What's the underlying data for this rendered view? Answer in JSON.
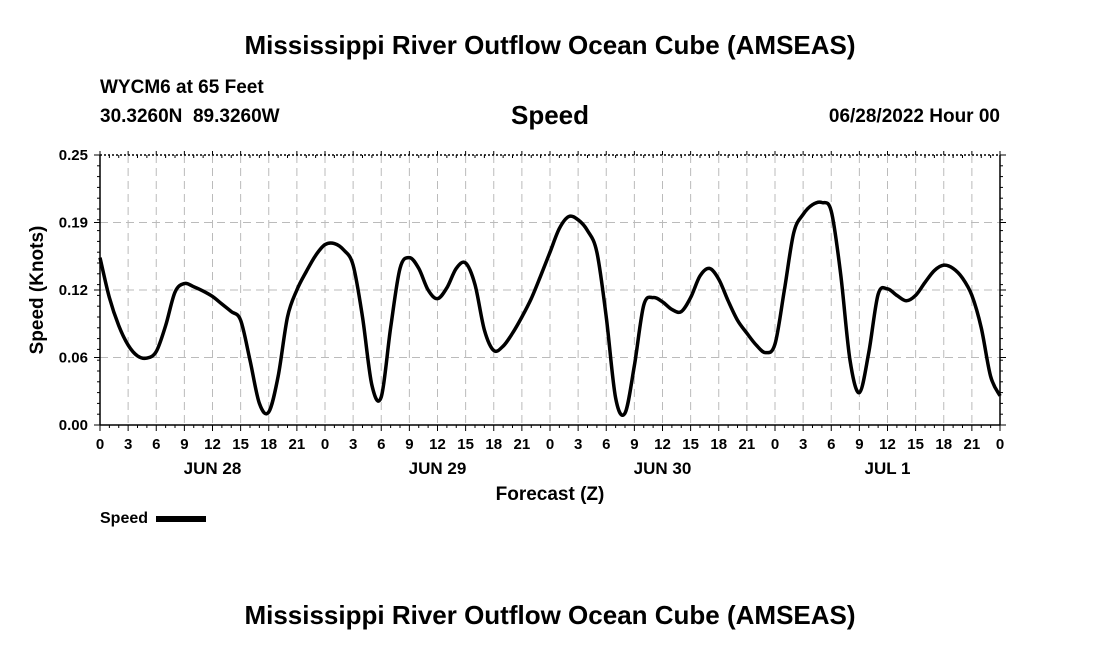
{
  "header": {
    "title": "Mississippi River Outflow Ocean Cube (AMSEAS)",
    "station": "WYCM6 at 65 Feet",
    "coords": "30.3260N  89.3260W",
    "variable": "Speed",
    "datetime": "06/28/2022 Hour 00"
  },
  "legend": {
    "label": "Speed",
    "color": "#000000"
  },
  "footer": {
    "title": "Mississippi River Outflow Ocean Cube (AMSEAS)"
  },
  "chart_data": {
    "type": "line",
    "title": "Speed",
    "xlabel": "Forecast (Z)",
    "ylabel": "Speed (Knots)",
    "xlim": [
      0,
      96
    ],
    "ylim": [
      0,
      0.25
    ],
    "grid": true,
    "legend_placement": "bottom-left",
    "yticks": [
      "0.00",
      "0.06",
      "0.12",
      "0.19",
      "0.25"
    ],
    "ytick_values": [
      0,
      0.0625,
      0.125,
      0.1875,
      0.25
    ],
    "xtick_labels": [
      "0",
      "3",
      "6",
      "9",
      "12",
      "15",
      "18",
      "21",
      "0",
      "3",
      "6",
      "9",
      "12",
      "15",
      "18",
      "21",
      "0",
      "3",
      "6",
      "9",
      "12",
      "15",
      "18",
      "21",
      "0",
      "3",
      "6",
      "9",
      "12",
      "15",
      "18",
      "21",
      "0"
    ],
    "day_labels": [
      {
        "label": "JUN 28",
        "hour": 12
      },
      {
        "label": "JUN 29",
        "hour": 36
      },
      {
        "label": "JUN 30",
        "hour": 60
      },
      {
        "label": "JUL 1",
        "hour": 84
      }
    ],
    "series": [
      {
        "name": "Speed",
        "color": "#000000",
        "x": [
          0,
          1,
          2,
          3,
          4,
          5,
          6,
          7,
          8,
          9,
          10,
          11,
          12,
          13,
          14,
          15,
          16,
          17,
          18,
          19,
          20,
          21,
          22,
          23,
          24,
          25,
          26,
          27,
          28,
          29,
          30,
          31,
          32,
          33,
          34,
          35,
          36,
          37,
          38,
          39,
          40,
          41,
          42,
          43,
          44,
          45,
          46,
          47,
          48,
          49,
          50,
          51,
          52,
          53,
          54,
          55,
          56,
          57,
          58,
          59,
          60,
          61,
          62,
          63,
          64,
          65,
          66,
          67,
          68,
          69,
          70,
          71,
          72,
          73,
          74,
          75,
          76,
          77,
          78,
          79,
          80,
          81,
          82,
          83,
          84,
          85,
          86,
          87,
          88,
          89,
          90,
          91,
          92,
          93,
          94,
          95,
          96
        ],
        "y": [
          0.155,
          0.118,
          0.092,
          0.074,
          0.064,
          0.062,
          0.068,
          0.092,
          0.123,
          0.131,
          0.128,
          0.124,
          0.119,
          0.112,
          0.105,
          0.097,
          0.06,
          0.02,
          0.012,
          0.045,
          0.1,
          0.125,
          0.142,
          0.157,
          0.167,
          0.168,
          0.162,
          0.148,
          0.1,
          0.037,
          0.026,
          0.09,
          0.145,
          0.155,
          0.145,
          0.125,
          0.117,
          0.127,
          0.145,
          0.15,
          0.13,
          0.088,
          0.069,
          0.073,
          0.085,
          0.1,
          0.117,
          0.138,
          0.16,
          0.182,
          0.193,
          0.19,
          0.18,
          0.16,
          0.1,
          0.025,
          0.011,
          0.055,
          0.111,
          0.118,
          0.114,
          0.107,
          0.105,
          0.118,
          0.138,
          0.145,
          0.135,
          0.115,
          0.097,
          0.085,
          0.074,
          0.067,
          0.075,
          0.125,
          0.178,
          0.195,
          0.204,
          0.206,
          0.198,
          0.14,
          0.06,
          0.03,
          0.067,
          0.121,
          0.126,
          0.12,
          0.115,
          0.12,
          0.132,
          0.143,
          0.148,
          0.145,
          0.136,
          0.12,
          0.09,
          0.045,
          0.027
        ]
      }
    ]
  }
}
